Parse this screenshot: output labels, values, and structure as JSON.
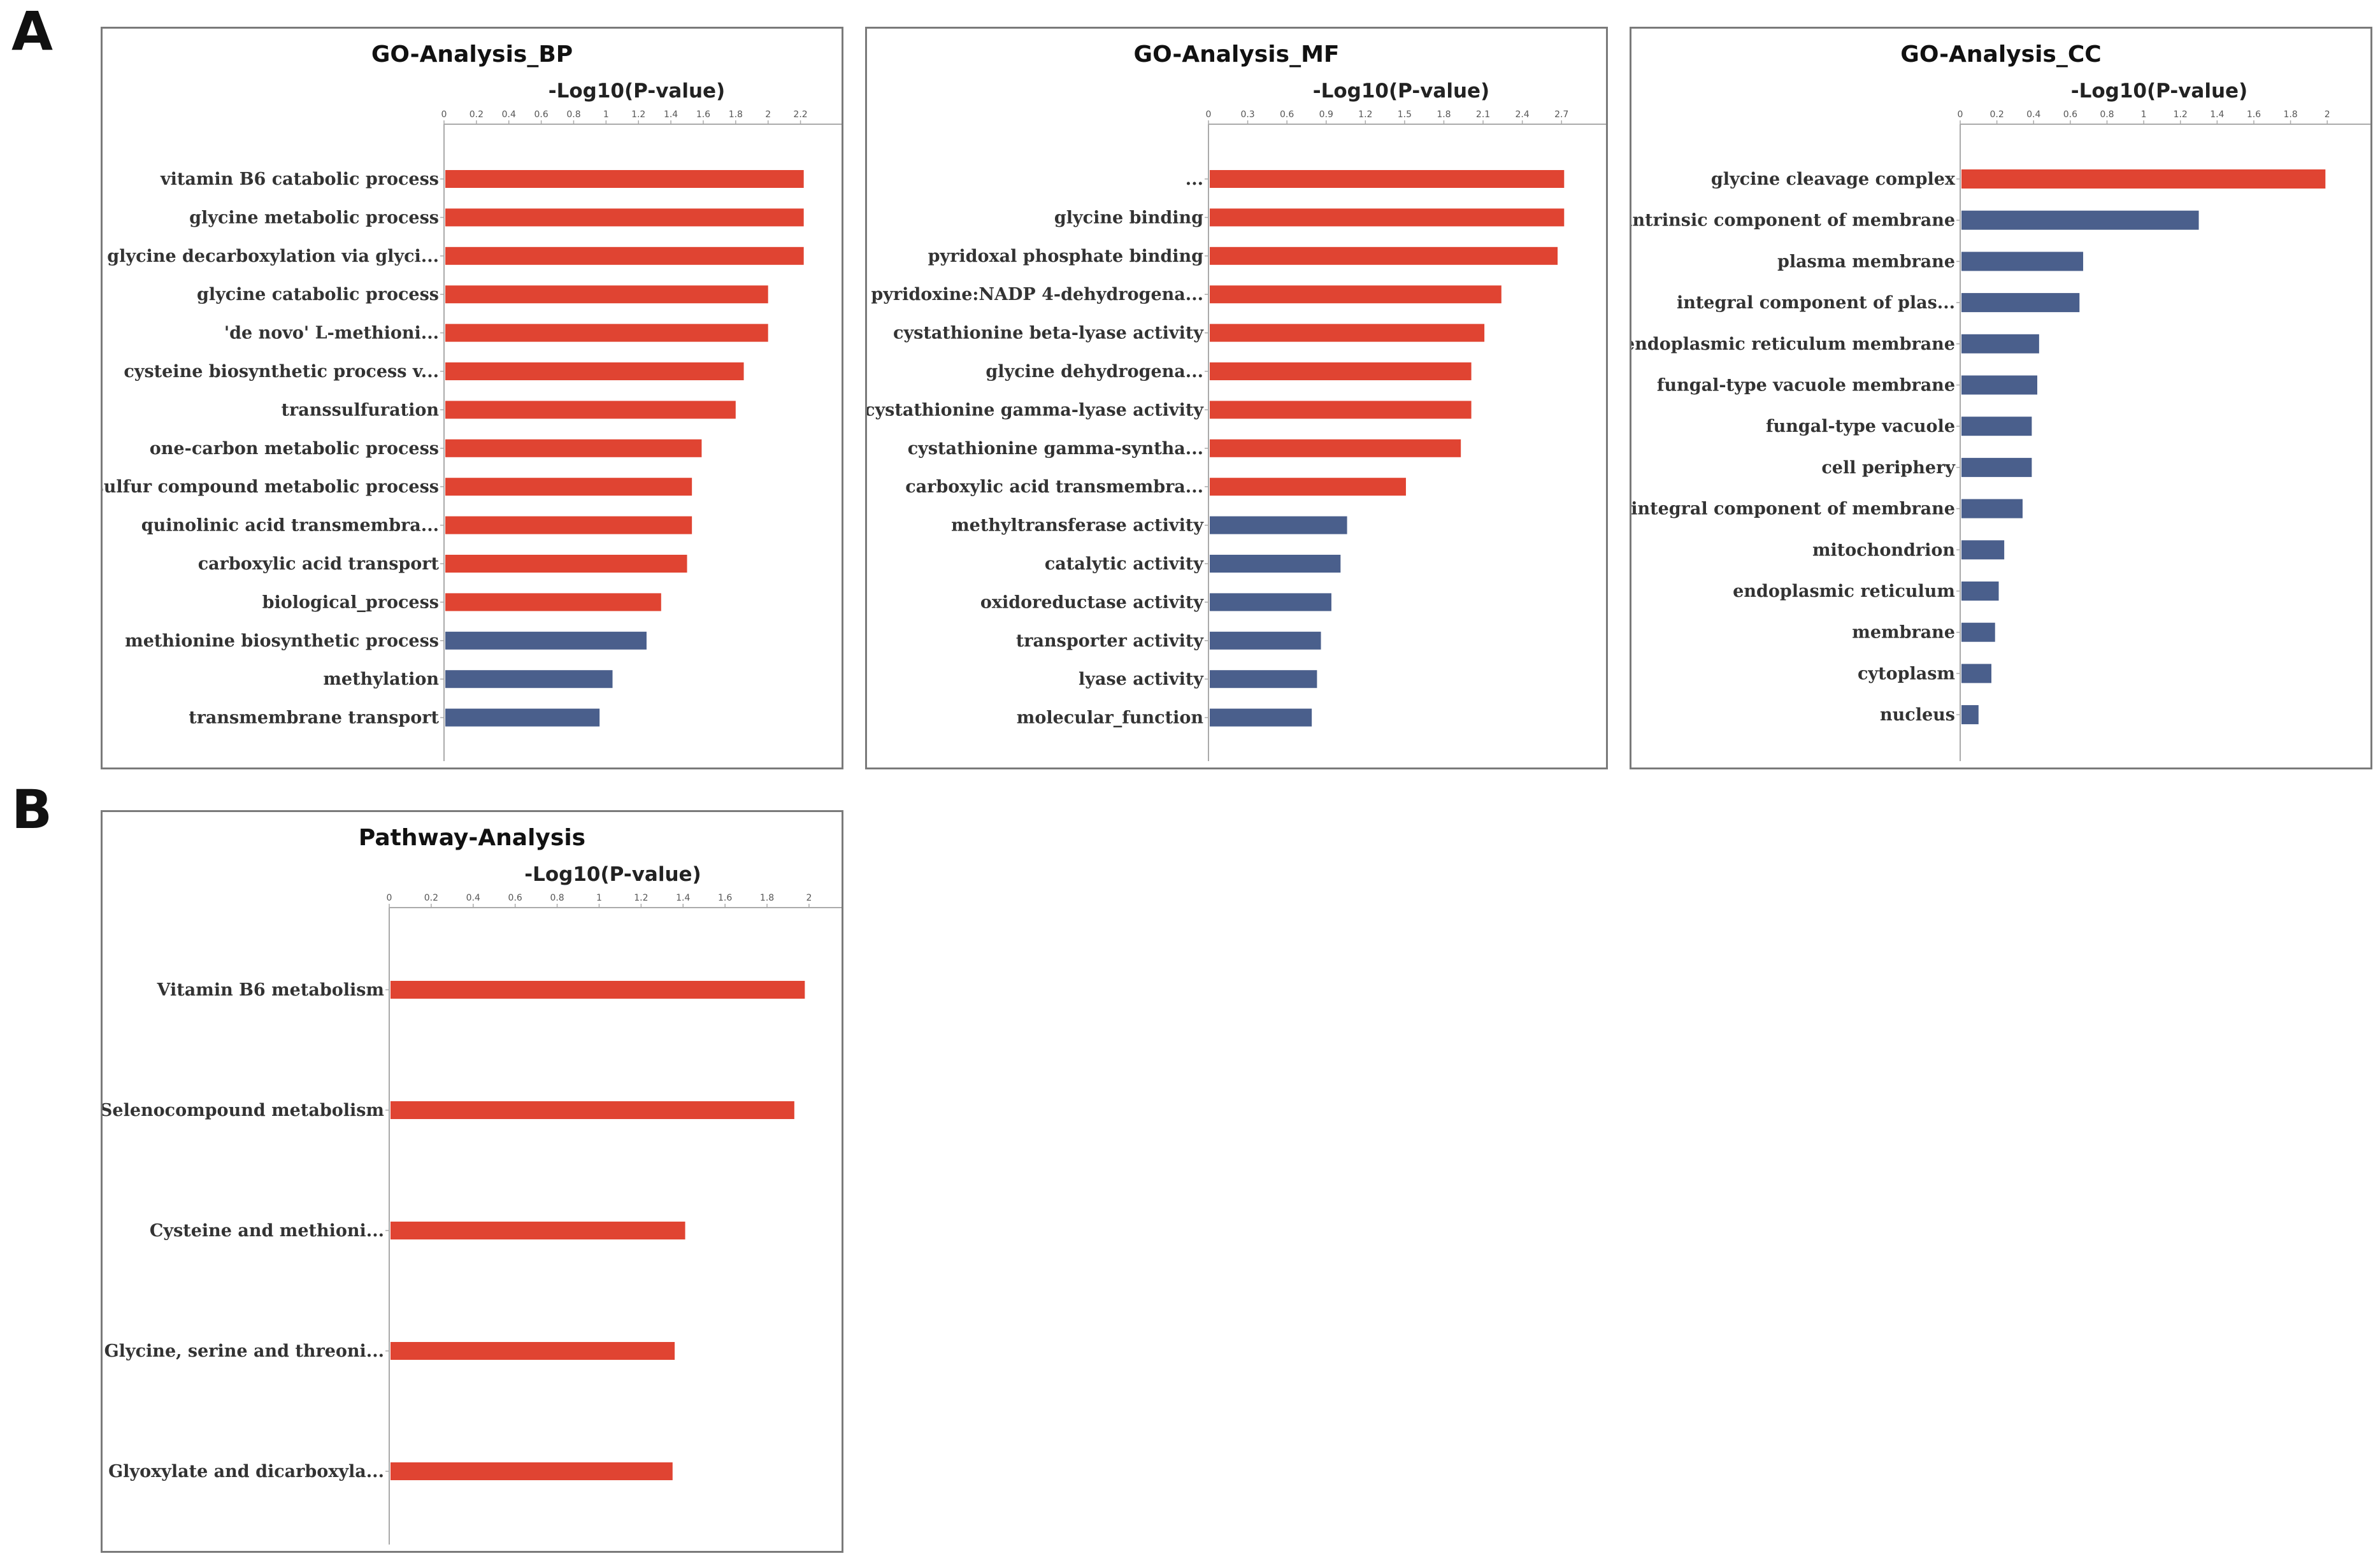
{
  "panel_labels": {
    "a": "A",
    "b": "B"
  },
  "colors": {
    "significant": "#e04432",
    "nonsignificant": "#4a5f8c"
  },
  "chart_data": [
    {
      "id": "bp",
      "type": "bar",
      "orientation": "horizontal",
      "title": "GO-Analysis_BP",
      "xlabel": "-Log10(P-value)",
      "ticks": [
        "0",
        "0.2",
        "0.4",
        "0.6",
        "0.8",
        "1",
        "1.2",
        "1.4",
        "1.6",
        "1.8",
        "2",
        "2.2"
      ],
      "xlim": [
        0,
        2.3
      ],
      "categories": [
        "vitamin B6 catabolic process",
        "glycine metabolic process",
        "glycine decarboxylation via glyci...",
        "glycine catabolic process",
        "'de novo' L-methioni...",
        "cysteine biosynthetic process v...",
        "transsulfuration",
        "one-carbon metabolic process",
        "sulfur compound metabolic process",
        "quinolinic acid transmembra...",
        "carboxylic acid transport",
        "biological_process",
        "methionine biosynthetic process",
        "methylation",
        "transmembrane transport"
      ],
      "values": [
        2.22,
        2.22,
        2.22,
        2.0,
        2.0,
        1.85,
        1.8,
        1.59,
        1.53,
        1.53,
        1.5,
        1.34,
        1.25,
        1.04,
        0.96
      ],
      "significant": [
        true,
        true,
        true,
        true,
        true,
        true,
        true,
        true,
        true,
        true,
        true,
        true,
        false,
        false,
        false
      ]
    },
    {
      "id": "mf",
      "type": "bar",
      "orientation": "horizontal",
      "title": "GO-Analysis_MF",
      "xlabel": "-Log10(P-value)",
      "ticks": [
        "0",
        "0.3",
        "0.6",
        "0.9",
        "1.2",
        "1.5",
        "1.8",
        "2.1",
        "2.4",
        "2.7"
      ],
      "xlim": [
        0,
        2.85
      ],
      "categories": [
        "...",
        "glycine binding",
        "pyridoxal phosphate binding",
        "pyridoxine:NADP 4-dehydrogena...",
        "cystathionine beta-lyase activity",
        "glycine dehydrogena...",
        "cystathionine gamma-lyase activity",
        "cystathionine gamma-syntha...",
        "carboxylic acid transmembra...",
        "methyltransferase activity",
        "catalytic activity",
        "oxidoreductase activity",
        "transporter activity",
        "lyase activity",
        "molecular_function"
      ],
      "values": [
        2.72,
        2.72,
        2.67,
        2.24,
        2.11,
        2.01,
        2.01,
        1.93,
        1.51,
        1.06,
        1.01,
        0.94,
        0.86,
        0.83,
        0.79
      ],
      "significant": [
        true,
        true,
        true,
        true,
        true,
        true,
        true,
        true,
        true,
        false,
        false,
        false,
        false,
        false,
        false
      ]
    },
    {
      "id": "cc",
      "type": "bar",
      "orientation": "horizontal",
      "title": "GO-Analysis_CC",
      "xlabel": "-Log10(P-value)",
      "ticks": [
        "0",
        "0.2",
        "0.4",
        "0.6",
        "0.8",
        "1",
        "1.2",
        "1.4",
        "1.6",
        "1.8",
        "2"
      ],
      "xlim": [
        0,
        2.1
      ],
      "categories": [
        "glycine cleavage complex",
        "intrinsic component of membrane",
        "plasma membrane",
        "integral component of plas...",
        "endoplasmic reticulum membrane",
        "fungal-type vacuole membrane",
        "fungal-type vacuole",
        "cell periphery",
        "integral component of membrane",
        "mitochondrion",
        "endoplasmic reticulum",
        "membrane",
        "cytoplasm",
        "nucleus"
      ],
      "values": [
        1.99,
        1.3,
        0.67,
        0.65,
        0.43,
        0.42,
        0.39,
        0.39,
        0.34,
        0.24,
        0.21,
        0.19,
        0.17,
        0.1
      ],
      "significant": [
        true,
        false,
        false,
        false,
        false,
        false,
        false,
        false,
        false,
        false,
        false,
        false,
        false,
        false
      ]
    },
    {
      "id": "pathway",
      "type": "bar",
      "orientation": "horizontal",
      "title": "Pathway-Analysis",
      "xlabel": "-Log10(P-value)",
      "ticks": [
        "0",
        "0.2",
        "0.4",
        "0.6",
        "0.8",
        "1",
        "1.2",
        "1.4",
        "1.6",
        "1.8",
        "2"
      ],
      "xlim": [
        0,
        2.07
      ],
      "categories": [
        "Vitamin B6 metabolism",
        "Selenocompound metabolism",
        "Cysteine and methioni...",
        "Glycine, serine and threoni...",
        "Glyoxylate and dicarboxyla..."
      ],
      "values": [
        1.98,
        1.93,
        1.41,
        1.36,
        1.35
      ],
      "significant": [
        true,
        true,
        true,
        true,
        true
      ]
    }
  ]
}
